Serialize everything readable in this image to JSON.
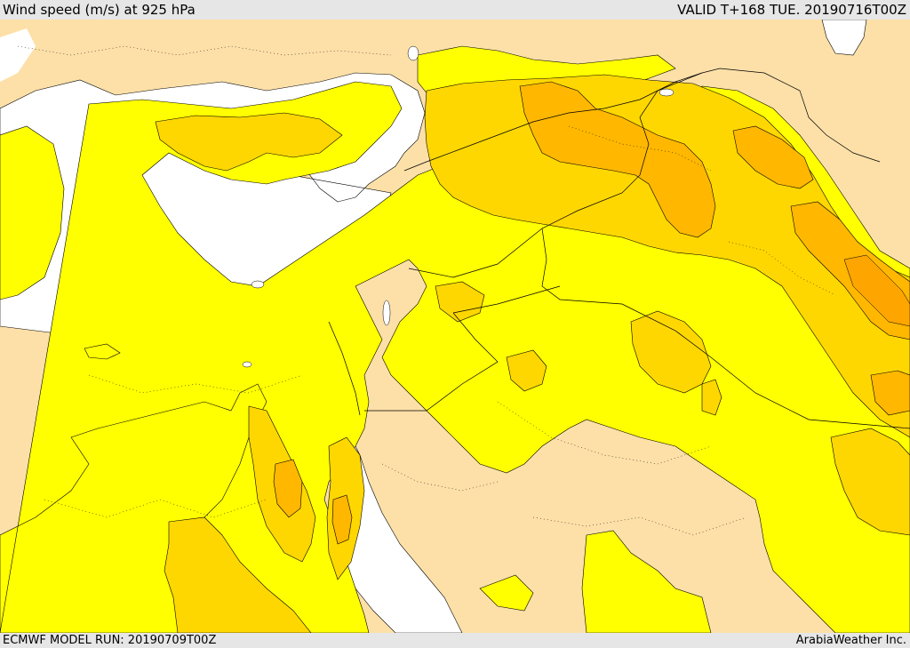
{
  "header": {
    "title": "Wind speed (m/s) at 925 hPa",
    "valid": "VALID T+168 TUE. 20190716T00Z"
  },
  "footer": {
    "model_run": "ECMWF MODEL RUN: 20190709T00Z",
    "credit": "ArabiaWeather Inc."
  },
  "colors": {
    "sea": "#ffffff",
    "land_calm": "#fde0a8",
    "wind_band_1": "#ffff00",
    "wind_band_2": "#ffd700",
    "wind_band_3": "#ffb700",
    "wind_band_4": "#ffa500",
    "contour": "#000000"
  }
}
